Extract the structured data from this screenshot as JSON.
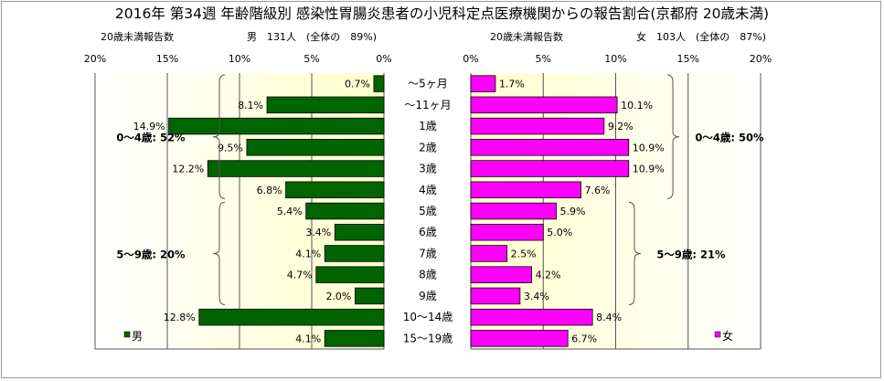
{
  "chart_data": {
    "type": "bar",
    "title": "2016年 第34週 年齢階級別 感染性胃腸炎患者の小児科定点医療機関からの報告割合(京都府 20歳未満)",
    "categories": [
      "～5ヶ月",
      "～11ヶ月",
      "1歳",
      "2歳",
      "3歳",
      "4歳",
      "5歳",
      "6歳",
      "7歳",
      "8歳",
      "9歳",
      "10～14歳",
      "15～19歳"
    ],
    "xlim": [
      0,
      20
    ],
    "ticks": [
      "20%",
      "15%",
      "10%",
      "5%",
      "0%"
    ],
    "ticks_right": [
      "0%",
      "5%",
      "10%",
      "15%",
      "20%"
    ],
    "series": [
      {
        "name": "男",
        "side": "left",
        "color": "#006400",
        "header_label": "20歳未満報告数",
        "header_value": "男　131人　(全体の　89%)",
        "values": [
          0.7,
          8.1,
          14.9,
          9.5,
          12.2,
          6.8,
          5.4,
          3.4,
          4.1,
          4.7,
          2.0,
          12.8,
          4.1
        ],
        "labels": [
          "0.7%",
          "8.1%",
          "14.9%",
          "9.5%",
          "12.2%",
          "6.8%",
          "5.4%",
          "3.4%",
          "4.1%",
          "4.7%",
          "2.0%",
          "12.8%",
          "4.1%"
        ],
        "groups": [
          {
            "label": "0～4歳: 52%",
            "from": 0,
            "to": 5
          },
          {
            "label": "5～9歳: 20%",
            "from": 6,
            "to": 10
          }
        ]
      },
      {
        "name": "女",
        "side": "right",
        "color": "#ff00ff",
        "header_label": "20歳未満報告数",
        "header_value": "女　103人　(全体の　87%)",
        "values": [
          1.7,
          10.1,
          9.2,
          10.9,
          10.9,
          7.6,
          5.9,
          5.0,
          2.5,
          4.2,
          3.4,
          8.4,
          6.7
        ],
        "labels": [
          "1.7%",
          "10.1%",
          "9.2%",
          "10.9%",
          "10.9%",
          "7.6%",
          "5.9%",
          "5.0%",
          "2.5%",
          "4.2%",
          "3.4%",
          "8.4%",
          "6.7%"
        ],
        "groups": [
          {
            "label": "0～4歳: 50%",
            "from": 0,
            "to": 5
          },
          {
            "label": "5～9歳: 21%",
            "from": 6,
            "to": 10
          }
        ]
      }
    ]
  }
}
